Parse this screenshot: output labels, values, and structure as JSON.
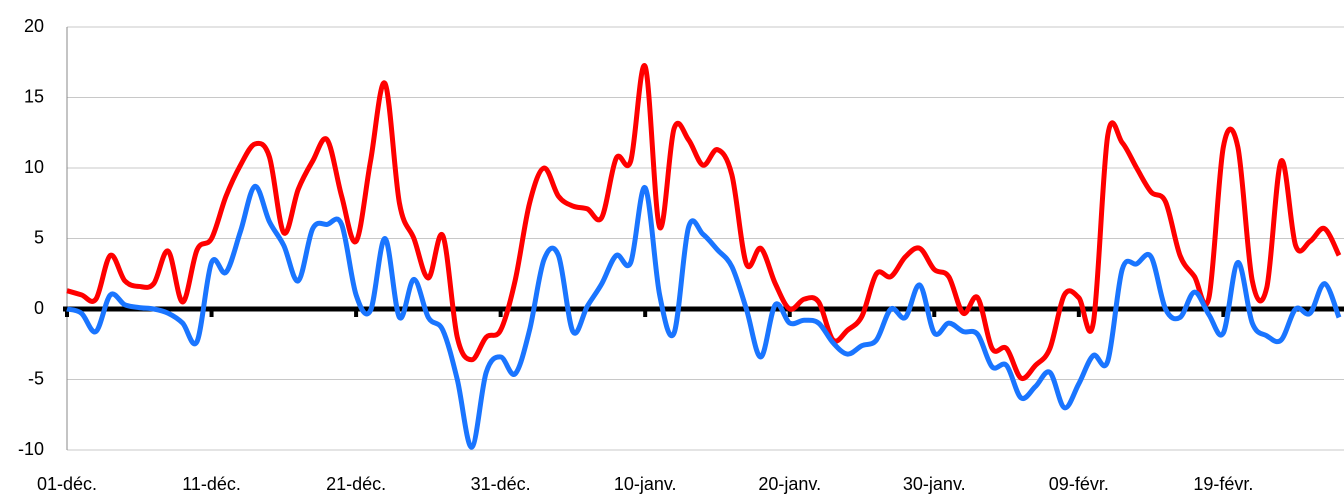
{
  "chart_data": {
    "type": "line",
    "categories": [
      "01-déc.",
      null,
      null,
      null,
      null,
      null,
      null,
      null,
      null,
      null,
      "11-déc.",
      null,
      null,
      null,
      null,
      null,
      null,
      null,
      null,
      null,
      "21-déc.",
      null,
      null,
      null,
      null,
      null,
      null,
      null,
      null,
      null,
      "31-déc.",
      null,
      null,
      null,
      null,
      null,
      null,
      null,
      null,
      null,
      "10-janv.",
      null,
      null,
      null,
      null,
      null,
      null,
      null,
      null,
      null,
      "20-janv.",
      null,
      null,
      null,
      null,
      null,
      null,
      null,
      null,
      null,
      "30-janv.",
      null,
      null,
      null,
      null,
      null,
      null,
      null,
      null,
      null,
      "09-févr.",
      null,
      null,
      null,
      null,
      null,
      null,
      null,
      null,
      null,
      "19-févr.",
      null,
      null,
      null,
      null,
      null,
      null,
      null,
      null
    ],
    "series": [
      {
        "color": "#ff0000",
        "values": [
          1.3,
          1.0,
          0.7,
          3.8,
          2.0,
          1.6,
          1.8,
          4.1,
          0.5,
          4.2,
          5.0,
          8.0,
          10.2,
          11.7,
          10.8,
          5.4,
          8.5,
          10.5,
          12.0,
          8.0,
          4.8,
          10.5,
          16.0,
          7.5,
          5.0,
          2.2,
          5.2,
          -2.0,
          -3.6,
          -2.0,
          -1.5,
          2.0,
          7.5,
          10.0,
          8.0,
          7.3,
          7.1,
          6.5,
          10.7,
          10.5,
          17.2,
          5.8,
          12.8,
          12.0,
          10.2,
          11.3,
          9.5,
          3.2,
          4.3,
          1.8,
          0.0,
          0.7,
          0.5,
          -2.2,
          -1.5,
          -0.5,
          2.5,
          2.3,
          3.7,
          4.3,
          2.8,
          2.3,
          -0.3,
          0.8,
          -2.8,
          -2.8,
          -4.9,
          -4.0,
          -2.8,
          1.0,
          0.8,
          -1.0,
          12.3,
          11.8,
          10.0,
          8.3,
          7.6,
          3.8,
          2.3,
          0.8,
          11.5,
          11.5,
          2.0,
          1.5,
          10.5,
          4.5,
          4.8,
          5.7,
          3.8
        ]
      },
      {
        "color": "#1a75ff",
        "values": [
          0,
          -0.3,
          -1.6,
          1.0,
          0.3,
          0.1,
          0.0,
          -0.3,
          -1.0,
          -2.3,
          3.3,
          2.6,
          5.5,
          8.7,
          6.2,
          4.5,
          2.0,
          5.7,
          6.0,
          6.0,
          1.0,
          -0.1,
          5.0,
          -0.6,
          2.1,
          -0.6,
          -1.5,
          -5.0,
          -9.8,
          -4.5,
          -3.4,
          -4.6,
          -1.5,
          3.5,
          3.8,
          -1.6,
          0.2,
          1.8,
          3.8,
          3.3,
          8.6,
          1.0,
          -1.7,
          5.8,
          5.3,
          4.2,
          3.0,
          0.0,
          -3.4,
          0.3,
          -1.0,
          -0.8,
          -1.0,
          -2.4,
          -3.2,
          -2.6,
          -2.2,
          0.0,
          -0.6,
          1.7,
          -1.7,
          -1.0,
          -1.6,
          -1.8,
          -4.1,
          -4.0,
          -6.3,
          -5.5,
          -4.5,
          -7.0,
          -5.3,
          -3.3,
          -3.7,
          2.8,
          3.2,
          3.7,
          0.0,
          -0.6,
          1.2,
          -0.4,
          -1.7,
          3.3,
          -1.0,
          -1.9,
          -2.2,
          0.0,
          -0.3,
          1.8,
          -0.6
        ]
      }
    ],
    "ylim": [
      -10,
      20
    ],
    "yticks": [
      -10,
      -5,
      0,
      5,
      10,
      15,
      20
    ],
    "grid": true
  }
}
